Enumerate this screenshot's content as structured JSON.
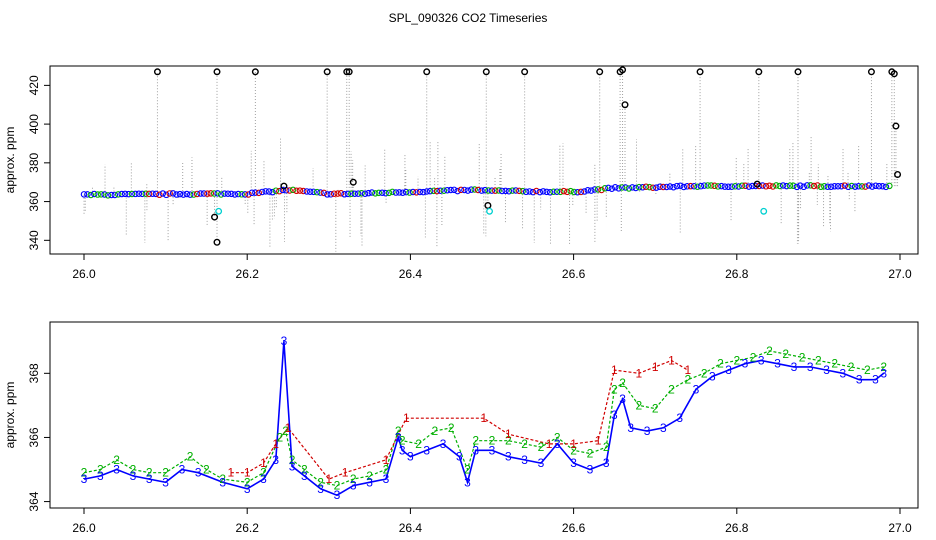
{
  "chart_data": [
    {
      "type": "scatter",
      "title": "SPL_090326  CO2 Timeseries",
      "xlabel": "",
      "ylabel": "approx. ppm",
      "xlim": [
        26.0,
        27.0
      ],
      "ylim": [
        335,
        430
      ],
      "x_ticks": [
        "26.0",
        "26.2",
        "26.4",
        "26.6",
        "26.8",
        "27.0"
      ],
      "y_ticks": [
        "340",
        "360",
        "380",
        "400",
        "420"
      ],
      "x_tick_values": [
        26.0,
        26.2,
        26.4,
        26.6,
        26.8,
        27.0
      ],
      "y_tick_values": [
        340,
        360,
        380,
        400,
        420
      ],
      "colors": {
        "black": "#000000",
        "blue": "#0000ff",
        "green": "#00b000",
        "red": "#d00000",
        "cyan": "#00d0d0",
        "gray": "#a0a0a0"
      },
      "baseline": [
        [
          26.0,
          363.5
        ],
        [
          26.15,
          364.0
        ],
        [
          26.2,
          364.0
        ],
        [
          26.25,
          366.0
        ],
        [
          26.3,
          364.0
        ],
        [
          26.33,
          364.0
        ],
        [
          26.4,
          365.0
        ],
        [
          26.48,
          366.0
        ],
        [
          26.5,
          365.5
        ],
        [
          26.6,
          365.0
        ],
        [
          26.65,
          367.0
        ],
        [
          26.66,
          367.0
        ],
        [
          26.75,
          368.0
        ],
        [
          26.85,
          368.0
        ],
        [
          26.99,
          368.0
        ]
      ],
      "outliers_black": [
        [
          26.09,
          427
        ],
        [
          26.163,
          427
        ],
        [
          26.21,
          427
        ],
        [
          26.298,
          427
        ],
        [
          26.322,
          427
        ],
        [
          26.325,
          427
        ],
        [
          26.42,
          427
        ],
        [
          26.493,
          427
        ],
        [
          26.54,
          427
        ],
        [
          26.632,
          427
        ],
        [
          26.657,
          427
        ],
        [
          26.66,
          428
        ],
        [
          26.663,
          410
        ],
        [
          26.755,
          427
        ],
        [
          26.827,
          427
        ],
        [
          26.875,
          427
        ],
        [
          26.965,
          427
        ],
        [
          26.99,
          427
        ],
        [
          26.993,
          426
        ],
        [
          26.995,
          399
        ],
        [
          26.997,
          374
        ],
        [
          26.16,
          352
        ],
        [
          26.163,
          339
        ],
        [
          26.33,
          370
        ],
        [
          26.495,
          358
        ],
        [
          26.245,
          368
        ],
        [
          26.825,
          369
        ]
      ],
      "outliers_cyan": [
        [
          26.165,
          355
        ],
        [
          26.497,
          355
        ],
        [
          26.833,
          355
        ]
      ]
    },
    {
      "type": "scatter",
      "title": "",
      "xlabel": "",
      "ylabel": "approx. ppm",
      "xlim": [
        26.0,
        27.0
      ],
      "ylim": [
        363.8,
        369.6
      ],
      "x_ticks": [
        "26.0",
        "26.2",
        "26.4",
        "26.6",
        "26.8",
        "27.0"
      ],
      "y_ticks": [
        "364",
        "366",
        "368"
      ],
      "x_tick_values": [
        26.0,
        26.2,
        26.4,
        26.6,
        26.8,
        27.0
      ],
      "y_tick_values": [
        364,
        366,
        368
      ],
      "series": [
        {
          "name": "3",
          "color": "#0000ff",
          "marker": "3",
          "points": [
            [
              26.0,
              364.7
            ],
            [
              26.02,
              364.8
            ],
            [
              26.04,
              365.0
            ],
            [
              26.06,
              364.8
            ],
            [
              26.08,
              364.7
            ],
            [
              26.1,
              364.6
            ],
            [
              26.12,
              365.0
            ],
            [
              26.14,
              364.9
            ],
            [
              26.17,
              364.6
            ],
            [
              26.2,
              364.4
            ],
            [
              26.22,
              364.7
            ],
            [
              26.235,
              365.3
            ],
            [
              26.245,
              369.0
            ],
            [
              26.255,
              365.1
            ],
            [
              26.27,
              364.8
            ],
            [
              26.29,
              364.4
            ],
            [
              26.31,
              364.2
            ],
            [
              26.33,
              364.5
            ],
            [
              26.35,
              364.6
            ],
            [
              26.37,
              364.7
            ],
            [
              26.385,
              366.0
            ],
            [
              26.39,
              365.6
            ],
            [
              26.4,
              365.4
            ],
            [
              26.42,
              365.6
            ],
            [
              26.44,
              365.8
            ],
            [
              26.46,
              365.4
            ],
            [
              26.47,
              364.6
            ],
            [
              26.48,
              365.6
            ],
            [
              26.5,
              365.6
            ],
            [
              26.52,
              365.4
            ],
            [
              26.54,
              365.3
            ],
            [
              26.56,
              365.2
            ],
            [
              26.58,
              365.8
            ],
            [
              26.6,
              365.2
            ],
            [
              26.62,
              365.0
            ],
            [
              26.64,
              365.2
            ],
            [
              26.65,
              366.7
            ],
            [
              26.66,
              367.2
            ],
            [
              26.67,
              366.3
            ],
            [
              26.69,
              366.2
            ],
            [
              26.71,
              366.3
            ],
            [
              26.73,
              366.6
            ],
            [
              26.75,
              367.5
            ],
            [
              26.77,
              367.9
            ],
            [
              26.79,
              368.1
            ],
            [
              26.81,
              368.3
            ],
            [
              26.83,
              368.4
            ],
            [
              26.85,
              368.3
            ],
            [
              26.87,
              368.2
            ],
            [
              26.89,
              368.2
            ],
            [
              26.91,
              368.1
            ],
            [
              26.93,
              368.0
            ],
            [
              26.95,
              367.8
            ],
            [
              26.97,
              367.8
            ],
            [
              26.98,
              368.0
            ]
          ]
        },
        {
          "name": "2",
          "color": "#00b000",
          "marker": "2",
          "points": [
            [
              26.0,
              364.9
            ],
            [
              26.02,
              365.0
            ],
            [
              26.04,
              365.3
            ],
            [
              26.06,
              365.0
            ],
            [
              26.08,
              364.9
            ],
            [
              26.1,
              364.9
            ],
            [
              26.13,
              365.4
            ],
            [
              26.15,
              365.0
            ],
            [
              26.17,
              364.7
            ],
            [
              26.2,
              364.6
            ],
            [
              26.22,
              364.9
            ],
            [
              26.24,
              366.0
            ],
            [
              26.247,
              366.2
            ],
            [
              26.255,
              365.3
            ],
            [
              26.27,
              365.0
            ],
            [
              26.29,
              364.6
            ],
            [
              26.31,
              364.5
            ],
            [
              26.33,
              364.7
            ],
            [
              26.35,
              364.8
            ],
            [
              26.37,
              365.0
            ],
            [
              26.385,
              366.2
            ],
            [
              26.39,
              365.9
            ],
            [
              26.41,
              365.8
            ],
            [
              26.43,
              366.2
            ],
            [
              26.45,
              366.3
            ],
            [
              26.47,
              365.0
            ],
            [
              26.48,
              365.9
            ],
            [
              26.5,
              365.9
            ],
            [
              26.52,
              365.9
            ],
            [
              26.54,
              365.8
            ],
            [
              26.56,
              365.7
            ],
            [
              26.58,
              366.0
            ],
            [
              26.6,
              365.6
            ],
            [
              26.62,
              365.5
            ],
            [
              26.64,
              365.7
            ],
            [
              26.65,
              367.5
            ],
            [
              26.66,
              367.7
            ],
            [
              26.68,
              367.0
            ],
            [
              26.7,
              366.9
            ],
            [
              26.72,
              367.5
            ],
            [
              26.74,
              367.8
            ],
            [
              26.76,
              368.0
            ],
            [
              26.78,
              368.3
            ],
            [
              26.8,
              368.4
            ],
            [
              26.82,
              368.5
            ],
            [
              26.84,
              368.7
            ],
            [
              26.86,
              368.6
            ],
            [
              26.88,
              368.5
            ],
            [
              26.9,
              368.4
            ],
            [
              26.92,
              368.3
            ],
            [
              26.94,
              368.2
            ],
            [
              26.96,
              368.1
            ],
            [
              26.98,
              368.2
            ]
          ]
        },
        {
          "name": "1",
          "color": "#d00000",
          "marker": "1",
          "points": [
            [
              26.18,
              364.9
            ],
            [
              26.2,
              364.9
            ],
            [
              26.22,
              365.2
            ],
            [
              26.235,
              365.8
            ],
            [
              26.25,
              366.3
            ],
            [
              26.3,
              364.7
            ],
            [
              26.32,
              364.9
            ],
            [
              26.37,
              365.3
            ],
            [
              26.395,
              366.6
            ],
            [
              26.49,
              366.6
            ],
            [
              26.52,
              366.1
            ],
            [
              26.57,
              365.8
            ],
            [
              26.6,
              365.8
            ],
            [
              26.63,
              365.9
            ],
            [
              26.65,
              368.1
            ],
            [
              26.68,
              368.0
            ],
            [
              26.7,
              368.2
            ],
            [
              26.72,
              368.4
            ],
            [
              26.74,
              368.1
            ]
          ]
        }
      ]
    }
  ]
}
